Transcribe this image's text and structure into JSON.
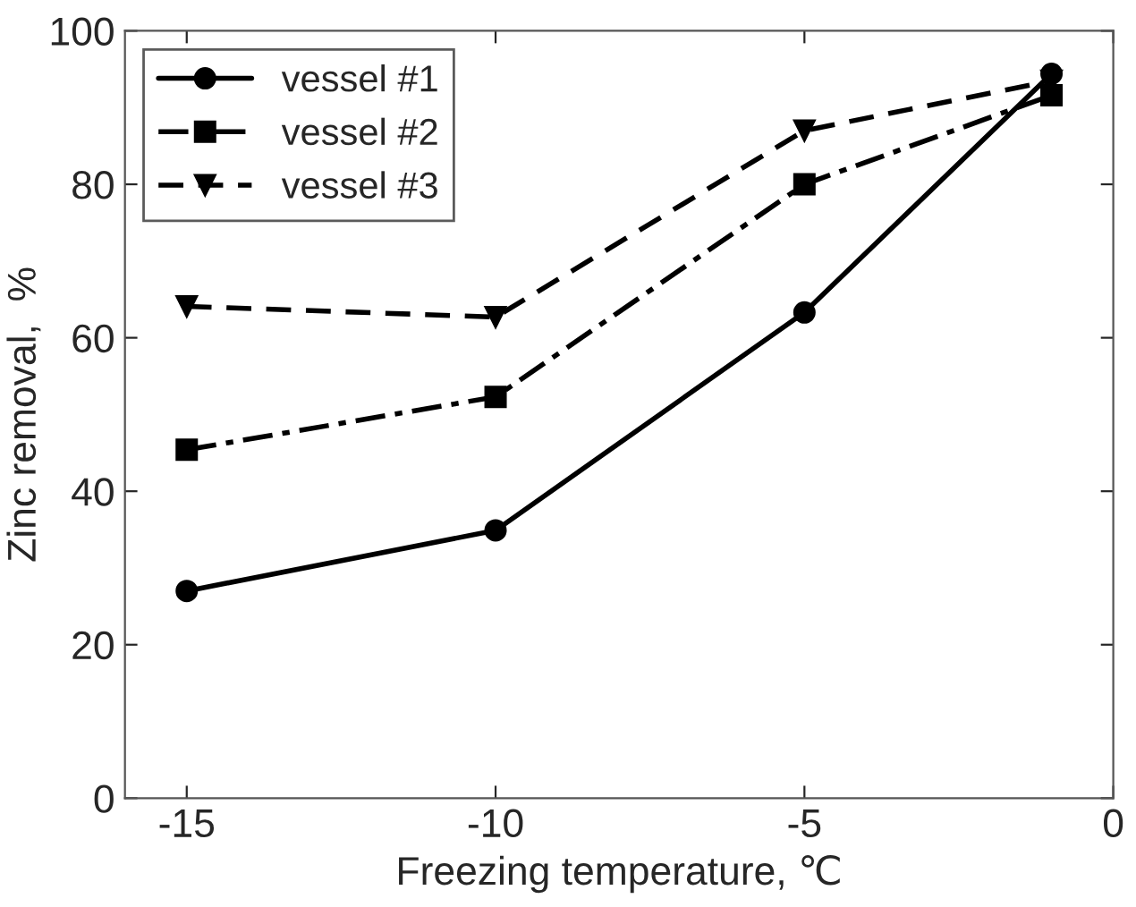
{
  "chart_data": {
    "type": "line",
    "xlabel": "Freezing temperature, ℃",
    "ylabel": "Zinc removal,  %",
    "x": [
      -15,
      -10,
      -5,
      -1
    ],
    "series": [
      {
        "name": "vessel #1",
        "color": "#000000",
        "marker": "circle",
        "line_style": "solid",
        "values": [
          27.0,
          34.9,
          63.3,
          94.4
        ]
      },
      {
        "name": "vessel #2",
        "color": "#000000",
        "marker": "square",
        "line_style": "dashdot",
        "values": [
          45.4,
          52.3,
          80.0,
          91.6
        ]
      },
      {
        "name": "vessel #3",
        "color": "#000000",
        "marker": "triangle",
        "line_style": "dashed",
        "values": [
          64.1,
          62.7,
          87.0,
          93.5
        ]
      }
    ],
    "xlim": [
      -16,
      0
    ],
    "xticks": [
      -15,
      -10,
      -5,
      0
    ],
    "ylim": [
      0,
      100
    ],
    "yticks": [
      0,
      20,
      40,
      60,
      80,
      100
    ],
    "grid": false,
    "legend": "top left"
  }
}
